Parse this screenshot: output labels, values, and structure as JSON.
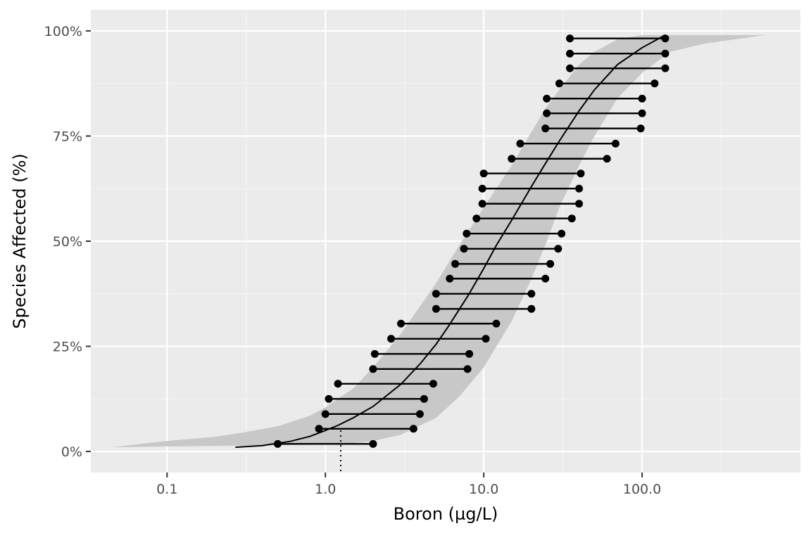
{
  "chart_data": {
    "type": "scatter",
    "title": "",
    "xlabel": "Boron (µg/L)",
    "ylabel": "Species Affected (%)",
    "x_scale": "log10",
    "xlim": [
      0.033,
      1000
    ],
    "ylim": [
      -0.05,
      1.05
    ],
    "x_ticks": [
      0.1,
      1.0,
      10.0,
      100.0
    ],
    "x_tick_labels": [
      "0.1",
      "1.0",
      "10.0",
      "100.0"
    ],
    "y_ticks": [
      0,
      0.25,
      0.5,
      0.75,
      1.0
    ],
    "y_tick_labels": [
      "0%",
      "25%",
      "50%",
      "75%",
      "100%"
    ],
    "grid": true,
    "legend": "none",
    "colors": {
      "panel": "#ebebeb",
      "grid_major": "#ffffff",
      "grid_minor": "#f5f5f5",
      "band": "#c8c8c8",
      "points": "#000000"
    },
    "intervals": [
      {
        "y": 0.018,
        "lower": 0.5,
        "upper": 2.0
      },
      {
        "y": 0.054,
        "lower": 0.91,
        "upper": 3.6
      },
      {
        "y": 0.089,
        "lower": 1.0,
        "upper": 3.95
      },
      {
        "y": 0.125,
        "lower": 1.05,
        "upper": 4.2
      },
      {
        "y": 0.161,
        "lower": 1.2,
        "upper": 4.8
      },
      {
        "y": 0.196,
        "lower": 2.0,
        "upper": 7.9
      },
      {
        "y": 0.232,
        "lower": 2.05,
        "upper": 8.1
      },
      {
        "y": 0.268,
        "lower": 2.6,
        "upper": 10.3
      },
      {
        "y": 0.304,
        "lower": 3.0,
        "upper": 12.0
      },
      {
        "y": 0.339,
        "lower": 5.0,
        "upper": 20.0
      },
      {
        "y": 0.375,
        "lower": 5.0,
        "upper": 20.0
      },
      {
        "y": 0.411,
        "lower": 6.1,
        "upper": 24.5
      },
      {
        "y": 0.446,
        "lower": 6.6,
        "upper": 26.3
      },
      {
        "y": 0.482,
        "lower": 7.5,
        "upper": 29.5
      },
      {
        "y": 0.518,
        "lower": 7.8,
        "upper": 31.0
      },
      {
        "y": 0.554,
        "lower": 9.0,
        "upper": 36.0
      },
      {
        "y": 0.589,
        "lower": 9.8,
        "upper": 40.0
      },
      {
        "y": 0.625,
        "lower": 9.8,
        "upper": 40.0
      },
      {
        "y": 0.661,
        "lower": 10.0,
        "upper": 41.0
      },
      {
        "y": 0.696,
        "lower": 15.0,
        "upper": 60.0
      },
      {
        "y": 0.732,
        "lower": 17.0,
        "upper": 68.0
      },
      {
        "y": 0.768,
        "lower": 24.5,
        "upper": 98.0
      },
      {
        "y": 0.804,
        "lower": 25.0,
        "upper": 100.0
      },
      {
        "y": 0.839,
        "lower": 25.0,
        "upper": 100.0
      },
      {
        "y": 0.875,
        "lower": 30.0,
        "upper": 120.0
      },
      {
        "y": 0.911,
        "lower": 35.0,
        "upper": 140.0
      },
      {
        "y": 0.946,
        "lower": 35.0,
        "upper": 140.0
      },
      {
        "y": 0.982,
        "lower": 35.0,
        "upper": 140.0
      }
    ],
    "fitted_curve": {
      "x": [
        0.27,
        0.4,
        0.6,
        0.8,
        1.0,
        1.2,
        1.5,
        2.0,
        3.0,
        4.0,
        5.0,
        6.0,
        8.0,
        10.0,
        12.0,
        15.0,
        20.0,
        25.0,
        30.0,
        40.0,
        50.0,
        70.0,
        100.0,
        140.0
      ],
      "y": [
        0.01,
        0.014,
        0.024,
        0.036,
        0.05,
        0.062,
        0.08,
        0.107,
        0.16,
        0.21,
        0.255,
        0.298,
        0.372,
        0.435,
        0.49,
        0.55,
        0.63,
        0.69,
        0.738,
        0.81,
        0.86,
        0.92,
        0.96,
        0.99
      ]
    },
    "confidence_band": {
      "x": [
        0.045,
        0.1,
        0.2,
        0.3,
        0.5,
        0.8,
        1.0,
        1.5,
        2.0,
        3.0,
        5.0,
        7.0,
        10.0,
        15.0,
        20.0,
        25.0,
        30.0,
        40.0,
        50.0,
        70.0,
        100.0,
        150.0,
        250.0,
        600.0
      ],
      "lower": [
        0.01,
        0.012,
        0.013,
        0.014,
        0.015,
        0.016,
        0.017,
        0.02,
        0.025,
        0.04,
        0.08,
        0.13,
        0.2,
        0.31,
        0.41,
        0.5,
        0.58,
        0.68,
        0.75,
        0.84,
        0.9,
        0.95,
        0.97,
        0.99
      ],
      "upper": [
        0.01,
        0.025,
        0.035,
        0.045,
        0.06,
        0.085,
        0.105,
        0.15,
        0.2,
        0.28,
        0.4,
        0.49,
        0.58,
        0.68,
        0.76,
        0.82,
        0.86,
        0.92,
        0.95,
        0.98,
        0.99,
        0.99,
        0.99,
        0.99
      ]
    },
    "hc_marker": {
      "x": 1.25,
      "y": 0.05
    }
  }
}
